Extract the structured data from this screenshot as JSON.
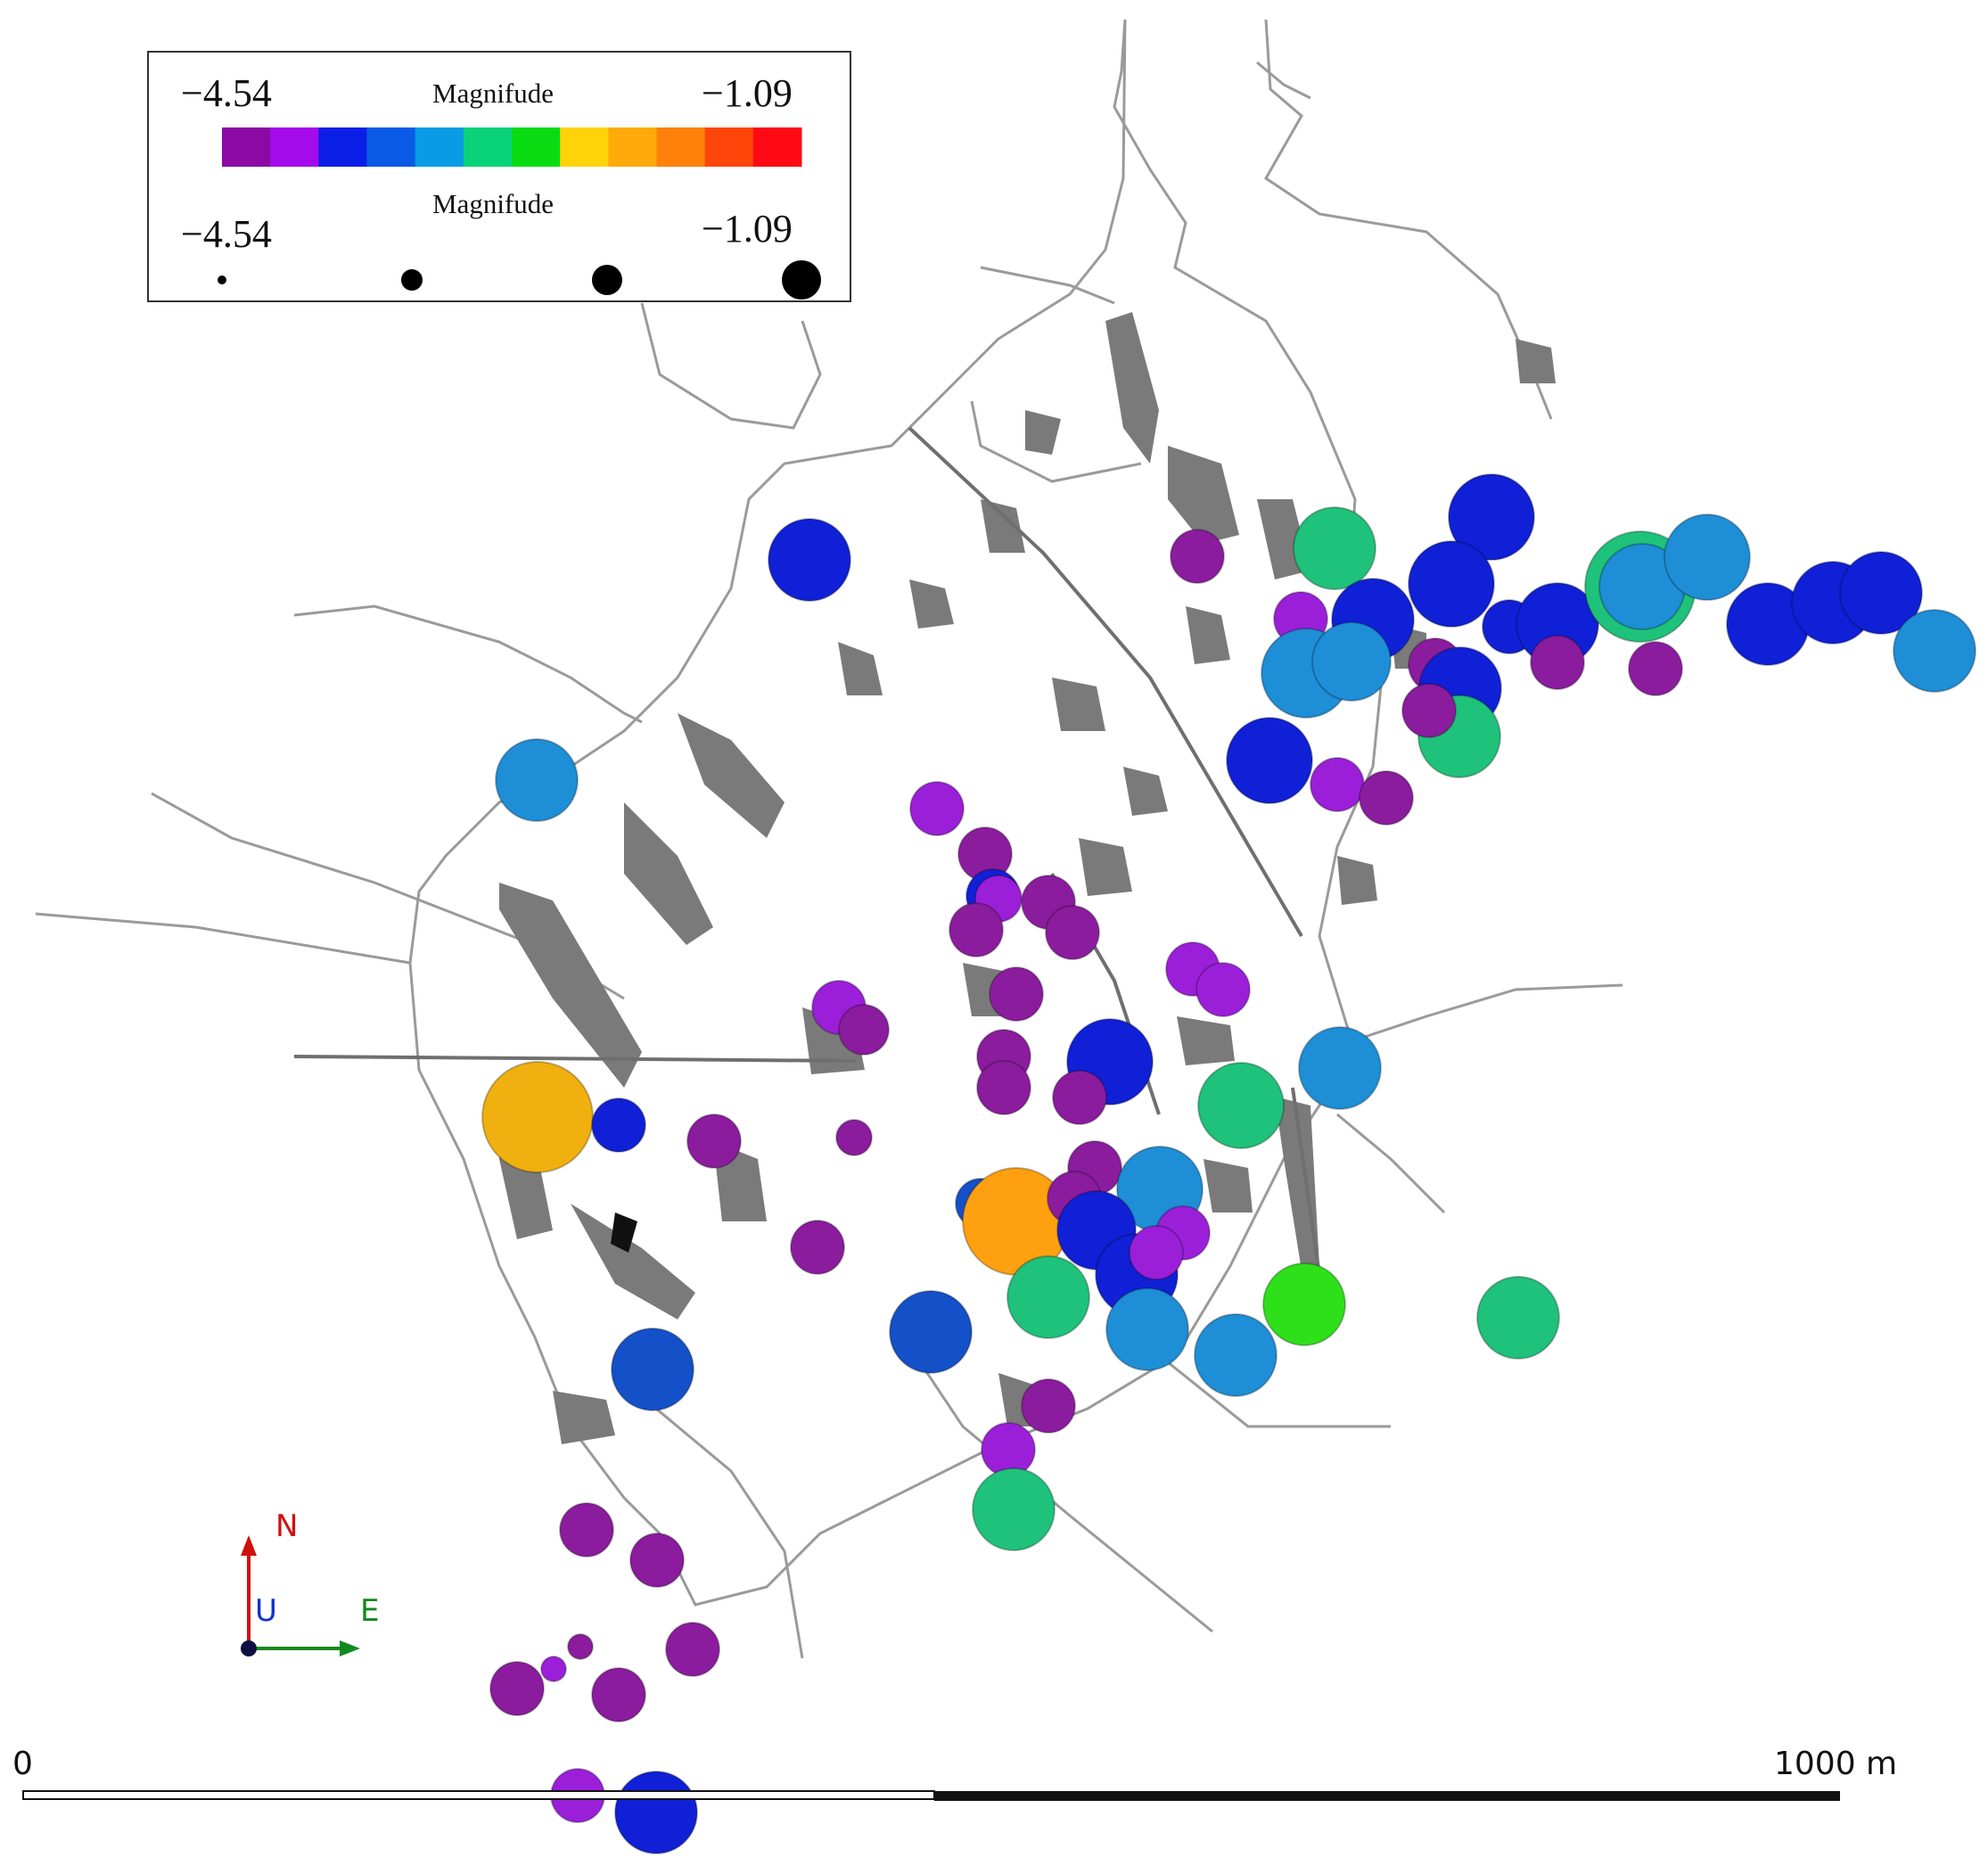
{
  "legend": {
    "color_title": "Magnifude",
    "size_title": "Magnifude",
    "color_min": "−4.54",
    "color_max": "−1.09",
    "size_min": "−4.54",
    "size_max": "−1.09",
    "color_steps": [
      "#8b0aa5",
      "#a40aeb",
      "#0a1ee6",
      "#0a5ae6",
      "#0a9be6",
      "#0ad278",
      "#0adc14",
      "#ffd20a",
      "#ffaa0a",
      "#ff800a",
      "#ff460a",
      "#ff0a14"
    ],
    "size_steps": [
      "-4.54",
      "-3.39",
      "-2.24",
      "-1.09"
    ]
  },
  "orientation": {
    "north": "N",
    "up": "U",
    "east": "E"
  },
  "scale_bar": {
    "start_label": "0",
    "end_label": "1000 m"
  },
  "colors": {
    "purple": "#8b1c9e",
    "violet": "#9b1fd9",
    "blue": "#1020d6",
    "mid_blue": "#1450c8",
    "light_blue": "#1e8ed6",
    "green": "#1fc27a",
    "bright_green": "#2ee01a",
    "orange": "#ffa010",
    "gold": "#f0b010",
    "workings": "#7a7a7a",
    "outline": "#9a9a9a"
  },
  "events": [
    {
      "mag": -1.09,
      "c": "gold",
      "lat": 0.73
    },
    {
      "mag": -1.2,
      "c": "orange",
      "lat": 0.23
    }
  ]
}
